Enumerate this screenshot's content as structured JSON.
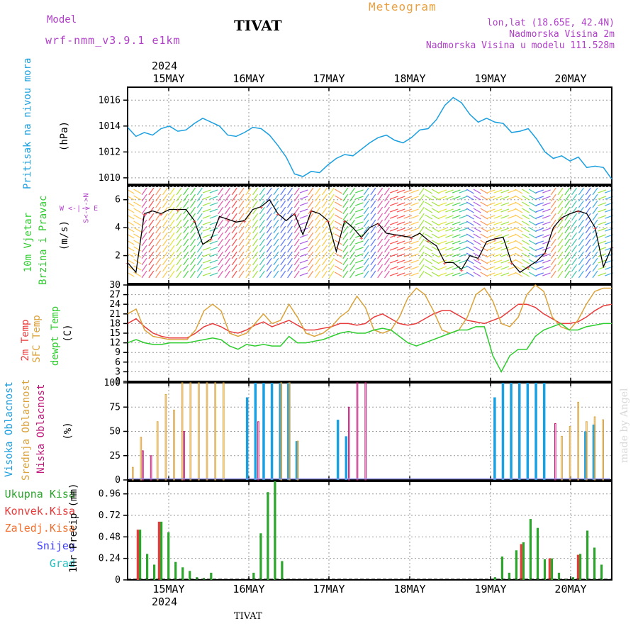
{
  "header": {
    "model_label": "Model",
    "model_name": "wrf-nmm_v3.9.1 e1km",
    "station": "TIVAT",
    "product": "Meteogram",
    "coords": "lon,lat (18.65E, 42.4N)",
    "elevation": "Nadmorska Visina 2m",
    "model_elevation": "Nadmorska Visina u modelu 111.528m",
    "year_top": "2024",
    "year_bottom": "2024",
    "footer": "TIVAT",
    "watermark": "made by Angel"
  },
  "colors": {
    "pressure": "#1a9fe0",
    "t2m": "#e83a3a",
    "sfc": "#dba23a",
    "dewpt": "#2ecc2e",
    "high_cloud": "#1a9fe0",
    "mid_cloud": "#dba23a",
    "low_cloud": "#c0187a",
    "total_precip": "#2ca52c",
    "conv_precip": "#e83a3a",
    "frozen_precip": "#f07030",
    "snow": "#4040ff",
    "hail": "#20c0c0",
    "header_purple": "#b040c8",
    "header_orange": "#e8a040"
  },
  "labels": {
    "pressure": {
      "line1": "Pritisak na nivou mora",
      "unit": "(hPa)"
    },
    "wind": {
      "line1": "10m Vjetar",
      "line2": "Brzina i Pravac",
      "unit": "(m/s)",
      "dir": "W <-|-> E",
      "dir_v": "S<-|->N"
    },
    "temp": {
      "t2m": "2m Temp",
      "sfc": "SFC Temp",
      "dew": "dewpt Temp",
      "unit": "(C)"
    },
    "cloud": {
      "high": "Visoka Oblacnost",
      "mid": "Srednja Oblacnost",
      "low": "Niska Oblacnost",
      "unit": "(%)"
    },
    "precip": {
      "total": "Ukupna Kisa",
      "conv": "Konvek.Kisa",
      "frozen": "Zaledj.Kisa",
      "snow": "Snijeg",
      "hail": "Grad",
      "unit": "1hr Precip (mm)"
    }
  },
  "chart_data": [
    {
      "type": "line",
      "panel": "pressure",
      "xlabels": [
        "15MAY",
        "16MAY",
        "17MAY",
        "18MAY",
        "19MAY",
        "20MAY"
      ],
      "ylim": [
        1009.5,
        1017
      ],
      "yticks": [
        "1010",
        "1012",
        "1014",
        "1016"
      ],
      "grid": true,
      "series": [
        {
          "name": "Pritisak na nivou mora",
          "values": [
            1013.9,
            1013.2,
            1013.5,
            1013.3,
            1013.8,
            1014.0,
            1013.6,
            1013.7,
            1014.2,
            1014.6,
            1014.3,
            1014.0,
            1013.3,
            1013.2,
            1013.5,
            1013.9,
            1013.8,
            1013.3,
            1012.5,
            1011.6,
            1010.3,
            1010.1,
            1010.5,
            1010.4,
            1011.0,
            1011.5,
            1011.8,
            1011.7,
            1012.2,
            1012.7,
            1013.1,
            1013.3,
            1012.9,
            1012.7,
            1013.1,
            1013.7,
            1013.8,
            1014.5,
            1015.6,
            1016.2,
            1015.8,
            1014.9,
            1014.3,
            1014.6,
            1014.3,
            1014.2,
            1013.5,
            1013.6,
            1013.8,
            1013.0,
            1012.0,
            1011.5,
            1011.7,
            1011.3,
            1011.6,
            1010.8,
            1010.9,
            1010.8,
            1009.9
          ]
        }
      ]
    },
    {
      "type": "line",
      "panel": "wind",
      "ylim": [
        0,
        7
      ],
      "yticks": [
        "2",
        "4",
        "6"
      ],
      "grid": true,
      "series": [
        {
          "name": "10m Vjetar",
          "values": [
            1.5,
            0.8,
            5.0,
            5.2,
            5.0,
            5.3,
            5.3,
            5.3,
            4.5,
            2.8,
            3.2,
            4.8,
            4.6,
            4.4,
            4.5,
            5.3,
            5.5,
            6.0,
            5.0,
            4.5,
            5.0,
            3.5,
            5.2,
            5.0,
            4.5,
            2.3,
            4.5,
            4.0,
            3.3,
            4.0,
            4.3,
            3.6,
            3.5,
            3.4,
            3.3,
            3.6,
            3.1,
            2.7,
            1.5,
            1.5,
            1.0,
            2.0,
            1.8,
            3.0,
            3.2,
            3.3,
            1.5,
            0.8,
            1.2,
            1.6,
            2.2,
            4.0,
            4.7,
            5.0,
            5.2,
            5.0,
            4.0,
            1.2,
            2.6
          ]
        }
      ]
    },
    {
      "type": "line",
      "panel": "temperature",
      "ylim": [
        0,
        30
      ],
      "yticks": [
        "0",
        "3",
        "6",
        "9",
        "12",
        "15",
        "18",
        "21",
        "24",
        "27",
        "30"
      ],
      "grid": true,
      "series": [
        {
          "name": "2m Temp",
          "values": [
            18,
            19.5,
            17,
            15,
            14,
            13.5,
            13.5,
            13.5,
            15,
            17,
            18,
            17,
            15.5,
            15,
            16,
            17.5,
            18.5,
            17,
            18,
            19,
            17.5,
            16,
            16,
            16.5,
            17,
            18,
            18,
            17.5,
            18,
            20,
            21,
            19.5,
            18,
            17.5,
            18,
            19.5,
            21,
            22,
            22,
            20.5,
            19,
            18.5,
            18,
            19,
            20,
            22,
            24,
            24,
            23,
            21,
            19.5,
            18,
            18,
            18.5,
            20,
            22,
            23.5,
            24
          ]
        },
        {
          "name": "SFC Temp",
          "values": [
            21,
            22.5,
            16,
            14,
            13.5,
            13,
            13,
            13,
            16,
            22,
            24,
            22,
            15,
            14,
            15,
            18,
            21,
            18,
            19,
            24,
            20,
            15,
            14,
            15,
            17,
            20,
            22,
            26.5,
            23,
            16,
            15,
            16,
            20,
            26,
            29,
            27,
            22,
            16,
            15,
            16,
            20,
            27,
            29,
            25,
            18,
            17,
            20,
            27,
            30,
            28,
            20,
            17,
            16,
            19,
            24,
            28,
            29,
            29
          ]
        },
        {
          "name": "dewpt Temp",
          "values": [
            12,
            13,
            12,
            11.5,
            11.5,
            12,
            12,
            12,
            12.5,
            13,
            13.5,
            13,
            11,
            10,
            11.5,
            11,
            11.5,
            11,
            11,
            14,
            12,
            12,
            12.5,
            13,
            14,
            15,
            15.5,
            15,
            15,
            16,
            16.5,
            16,
            14,
            12,
            11,
            12,
            13,
            14,
            15,
            16,
            16,
            17,
            17,
            8,
            3,
            8,
            10,
            10,
            14,
            16,
            17,
            18,
            16,
            16,
            17,
            17.5,
            18,
            18
          ]
        }
      ]
    },
    {
      "type": "bar",
      "panel": "cloud",
      "ylim": [
        0,
        100
      ],
      "yticks": [
        "0",
        "25",
        "50",
        "75",
        "100"
      ],
      "grid": true,
      "series": [
        {
          "name": "Visoka Oblacnost",
          "values": [
            0,
            0,
            0,
            0,
            0,
            0,
            0,
            0,
            0,
            0,
            0,
            0,
            0,
            0,
            85,
            100,
            100,
            100,
            100,
            100,
            40,
            0,
            0,
            0,
            0,
            62,
            45,
            0,
            0,
            0,
            0,
            0,
            0,
            0,
            0,
            0,
            0,
            0,
            0,
            0,
            0,
            0,
            0,
            0,
            85,
            100,
            100,
            100,
            100,
            100,
            100,
            0,
            0,
            0,
            0,
            50,
            57,
            0,
            0
          ]
        },
        {
          "name": "Srednja Oblacnost",
          "values": [
            13,
            44,
            0,
            60,
            88,
            72,
            100,
            100,
            100,
            100,
            100,
            100,
            0,
            0,
            0,
            0,
            0,
            0,
            100,
            100,
            40,
            0,
            0,
            0,
            0,
            0,
            0,
            0,
            0,
            0,
            0,
            0,
            0,
            0,
            0,
            0,
            0,
            0,
            0,
            0,
            0,
            0,
            0,
            0,
            0,
            0,
            0,
            0,
            0,
            0,
            0,
            0,
            45,
            55,
            80,
            60,
            65,
            62,
            0
          ]
        },
        {
          "name": "Niska Oblacnost",
          "values": [
            0,
            30,
            25,
            0,
            0,
            0,
            50,
            0,
            0,
            0,
            0,
            0,
            0,
            0,
            0,
            60,
            0,
            0,
            0,
            0,
            0,
            0,
            0,
            0,
            0,
            0,
            75,
            100,
            100,
            0,
            0,
            0,
            0,
            0,
            0,
            0,
            0,
            0,
            0,
            0,
            0,
            0,
            0,
            0,
            0,
            0,
            0,
            0,
            0,
            0,
            0,
            58,
            0,
            0,
            0,
            0,
            0,
            0,
            0
          ]
        }
      ]
    },
    {
      "type": "bar",
      "panel": "precip",
      "xlabels": [
        "15MAY",
        "16MAY",
        "17MAY",
        "18MAY",
        "19MAY",
        "20MAY"
      ],
      "ylim": [
        0,
        1.1
      ],
      "yticks": [
        "0",
        "0.24",
        "0.48",
        "0.72",
        "0.96"
      ],
      "grid": true,
      "series": [
        {
          "name": "Ukupna Kisa",
          "values": [
            0.56,
            0.29,
            0.17,
            0.65,
            0.53,
            0.2,
            0.14,
            0.1,
            0.03,
            0.02,
            0.08,
            0.0,
            0.0,
            0.0,
            0.0,
            0.0,
            0.08,
            0.52,
            0.98,
            1.1,
            0.21,
            0.0,
            0.0,
            0.0,
            0.0,
            0.0,
            0.0,
            0.0,
            0.0,
            0.0,
            0.0,
            0.0,
            0.0,
            0.0,
            0.0,
            0.0,
            0.0,
            0.0,
            0.0,
            0.0,
            0.0,
            0.0,
            0.0,
            0.0,
            0.0,
            0.0,
            0.0,
            0.0,
            0.0,
            0.0,
            0.03,
            0.26,
            0.08,
            0.33,
            0.42,
            0.68,
            0.58,
            0.23,
            0.24,
            0.08,
            0.01,
            0.03,
            0.29,
            0.55,
            0.36,
            0.17
          ]
        },
        {
          "name": "Konvek.Kisa",
          "values": [
            0.56,
            0.0,
            0.0,
            0.65,
            0.0,
            0.0,
            0.0,
            0.0,
            0.0,
            0.0,
            0.0,
            0.0,
            0.0,
            0.0,
            0.0,
            0.0,
            0.0,
            0.0,
            0.0,
            0.0,
            0.0,
            0.0,
            0.0,
            0.0,
            0.0,
            0.0,
            0.0,
            0.0,
            0.0,
            0.0,
            0.0,
            0.0,
            0.0,
            0.0,
            0.0,
            0.0,
            0.0,
            0.0,
            0.0,
            0.0,
            0.0,
            0.0,
            0.0,
            0.0,
            0.0,
            0.0,
            0.0,
            0.0,
            0.0,
            0.0,
            0.0,
            0.0,
            0.0,
            0.0,
            0.4,
            0.0,
            0.0,
            0.0,
            0.24,
            0.0,
            0.0,
            0.0,
            0.28,
            0.0,
            0.0,
            0.0
          ]
        }
      ]
    }
  ]
}
